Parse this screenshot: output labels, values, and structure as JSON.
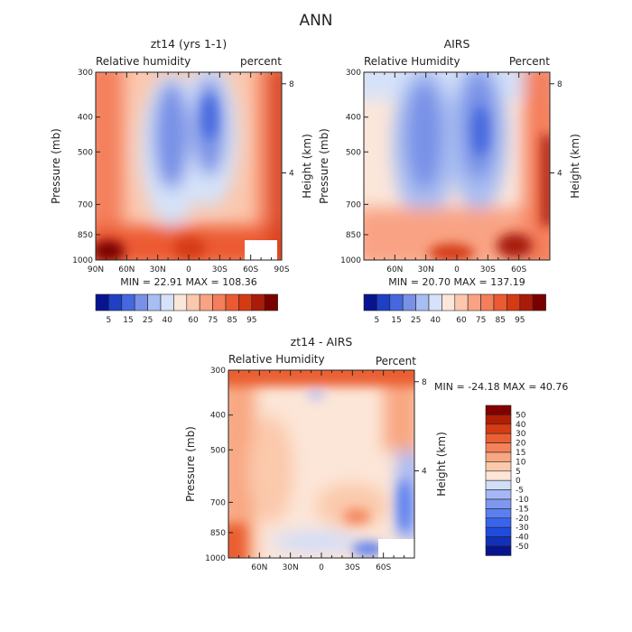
{
  "figure": {
    "title": "ANN"
  },
  "colors": {
    "rh_levels": [
      "#08148f",
      "#1f3fc4",
      "#4568de",
      "#7891e6",
      "#a8bdf2",
      "#d5e2f9",
      "#fbe6da",
      "#fbc7ad",
      "#f9a384",
      "#f47f5b",
      "#ec5a33",
      "#d43b15",
      "#a91c08",
      "#7a0000"
    ],
    "diff_levels": [
      "#08148f",
      "#1230b8",
      "#1f4cde",
      "#3a64ed",
      "#5b7fee",
      "#7e98ef",
      "#a5b7f4",
      "#d2ddf9",
      "#fce6d8",
      "#fbc9ac",
      "#f8a782",
      "#f3835a",
      "#ea5f33",
      "#d53c14",
      "#b01f05",
      "#820000"
    ]
  },
  "chart_data": [
    {
      "id": "model",
      "type": "heatmap",
      "title": "zt14 (yrs 1-1)",
      "left_label": "Relative humidity",
      "right_label": "percent",
      "xlabel": "",
      "ylabel": "Pressure (mb)",
      "y2label": "Height (km)",
      "x_ticks": [
        "90N",
        "60N",
        "30N",
        "0",
        "30S",
        "60S",
        "90S"
      ],
      "y_ticks": [
        "300",
        "400",
        "500",
        "700",
        "850",
        "1000"
      ],
      "y2_ticks": [
        "8",
        "4"
      ],
      "min_label": "MIN =",
      "min_value": "22.91",
      "max_label": "MAX =",
      "max_value": "108.36"
    },
    {
      "id": "obs",
      "type": "heatmap",
      "title": "AIRS",
      "left_label": "Relative Humidity",
      "right_label": "Percent",
      "xlabel": "",
      "ylabel": "Pressure (mb)",
      "y2label": "Height (km)",
      "x_ticks": [
        "60N",
        "30N",
        "0",
        "30S",
        "60S"
      ],
      "y_ticks": [
        "300",
        "400",
        "500",
        "700",
        "850",
        "1000"
      ],
      "y2_ticks": [
        "8",
        "4"
      ],
      "min_label": "MIN =",
      "min_value": "20.70",
      "max_label": "MAX =",
      "max_value": "137.19"
    },
    {
      "id": "diff",
      "type": "heatmap",
      "title": "zt14 - AIRS",
      "left_label": "Relative Humidity",
      "right_label": "Percent",
      "xlabel": "",
      "ylabel": "Pressure (mb)",
      "y2label": "Height (km)",
      "x_ticks": [
        "60N",
        "30N",
        "0",
        "30S",
        "60S"
      ],
      "y_ticks": [
        "300",
        "400",
        "500",
        "700",
        "850",
        "1000"
      ],
      "y2_ticks": [
        "8",
        "4"
      ],
      "min_label": "MIN =",
      "min_value": "-24.18",
      "max_label": "MAX =",
      "max_value": "40.76"
    }
  ],
  "colorbars": {
    "rh": {
      "labels": [
        "5",
        "15",
        "25",
        "40",
        "60",
        "75",
        "85",
        "95"
      ]
    },
    "diff": {
      "labels": [
        "50",
        "40",
        "30",
        "20",
        "15",
        "10",
        "5",
        "0",
        "-5",
        "-10",
        "-15",
        "-20",
        "-30",
        "-40",
        "-50"
      ]
    }
  }
}
